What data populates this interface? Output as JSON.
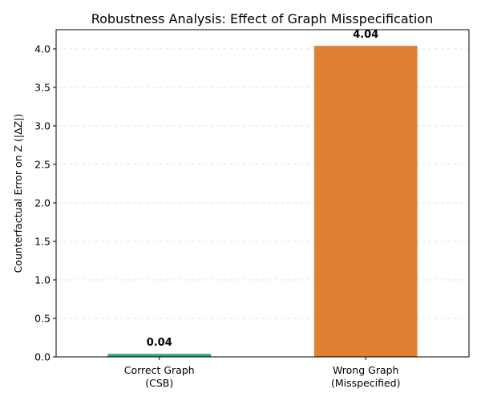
{
  "chart_data": {
    "type": "bar",
    "title": "Robustness Analysis: Effect of Graph Misspecification",
    "xlabel": "",
    "ylabel": "Counterfactual Error on Z (|ΔZ|)",
    "categories": [
      [
        "Correct Graph",
        "(CSB)"
      ],
      [
        "Wrong Graph",
        "(Misspecified)"
      ]
    ],
    "values": [
      0.04,
      4.04
    ],
    "value_labels": [
      "0.04",
      "4.04"
    ],
    "colors": [
      "#3aa584",
      "#df8033"
    ],
    "ylim": [
      0,
      4.25
    ],
    "yticks": [
      0.0,
      0.5,
      1.0,
      1.5,
      2.0,
      2.5,
      3.0,
      3.5,
      4.0
    ],
    "ytick_labels": [
      "0.0",
      "0.5",
      "1.0",
      "1.5",
      "2.0",
      "2.5",
      "3.0",
      "3.5",
      "4.0"
    ],
    "grid": "y-dashed",
    "legend": "none"
  }
}
